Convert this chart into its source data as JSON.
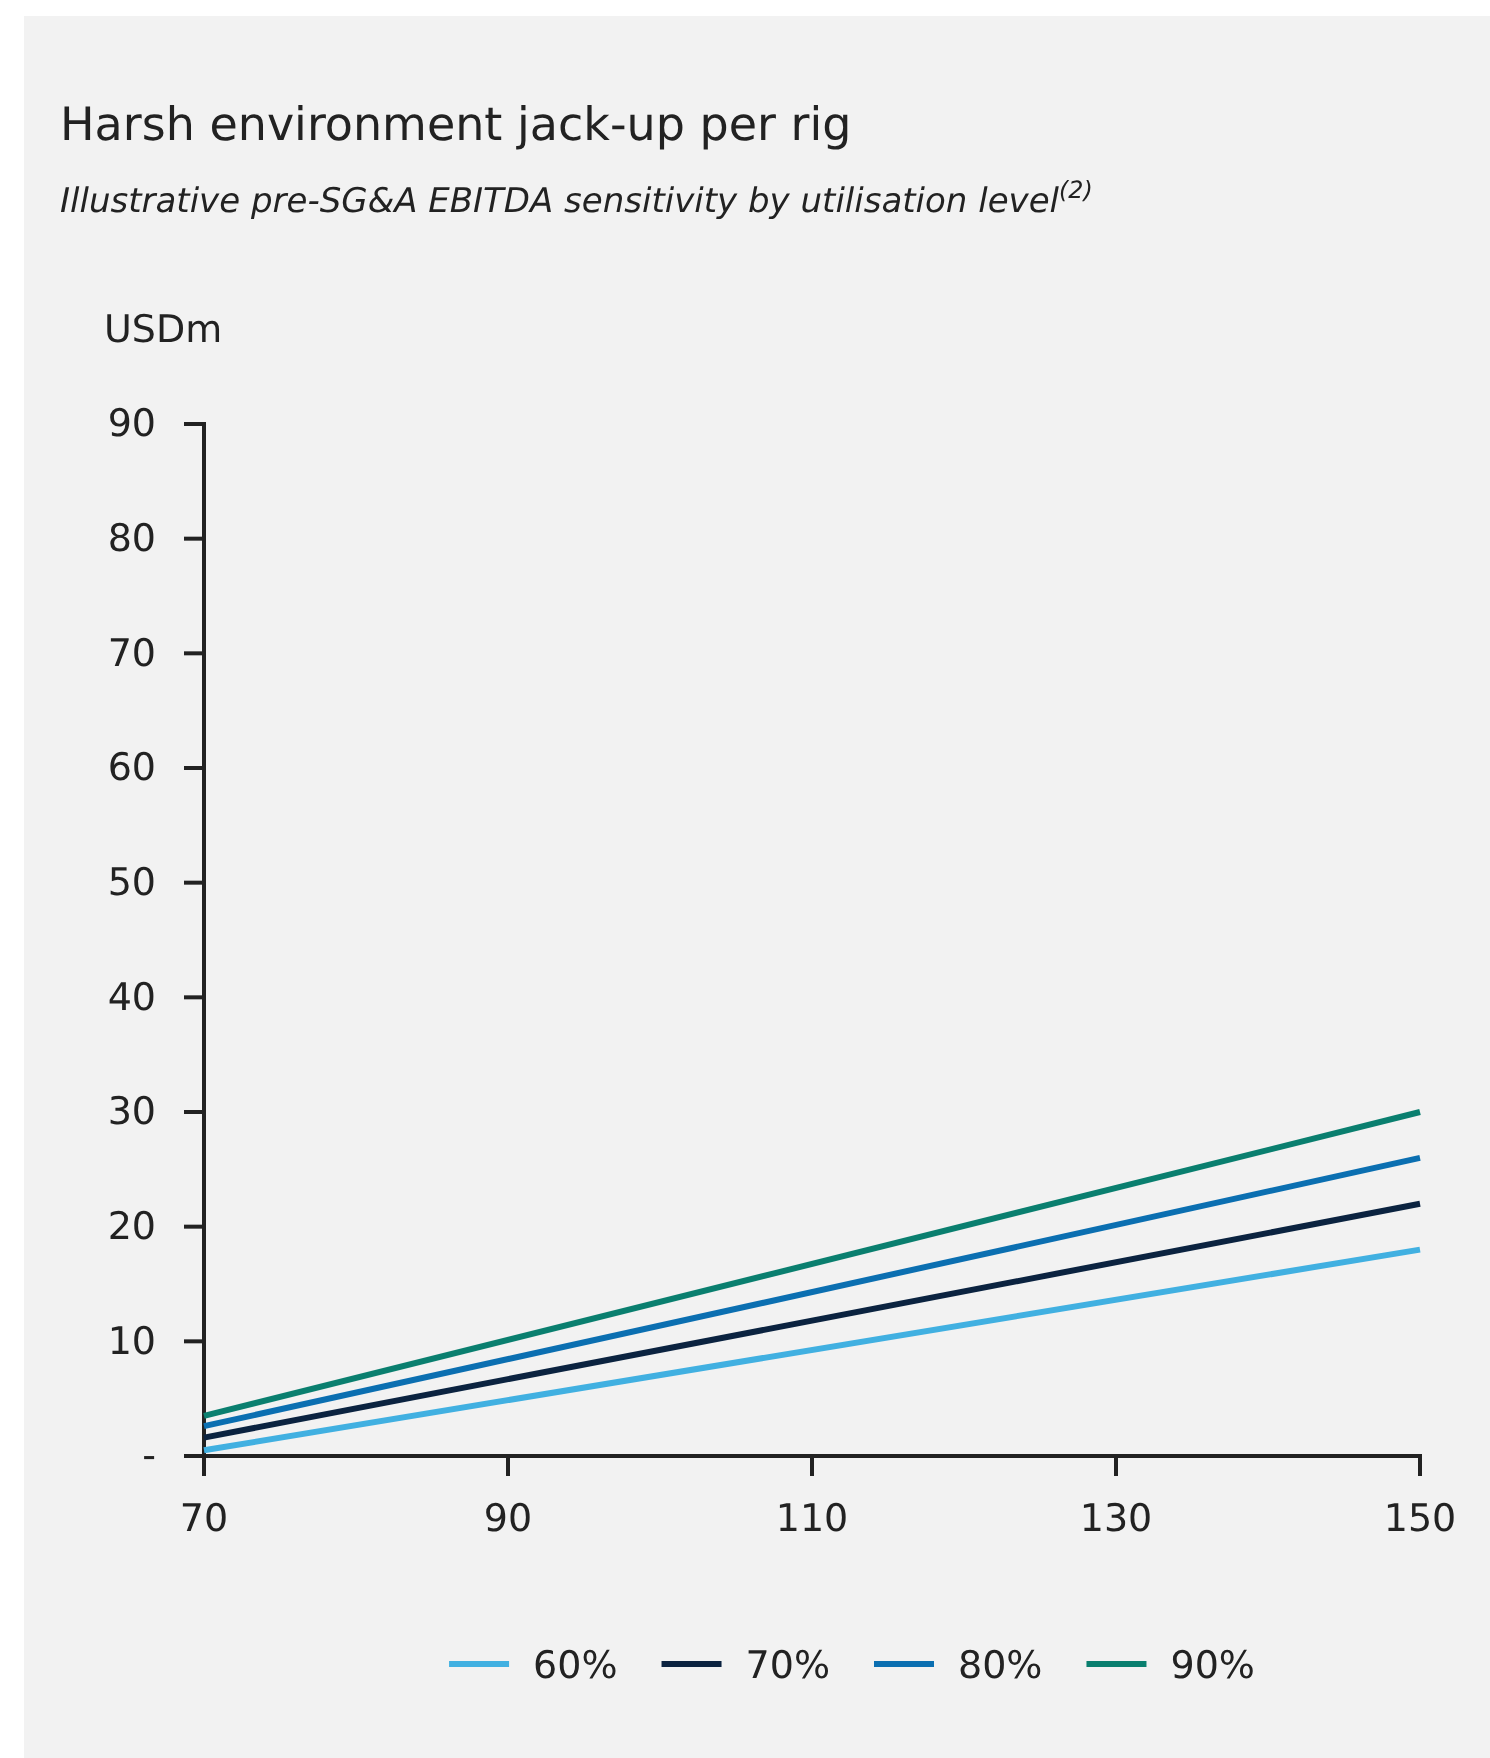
{
  "chart_data": {
    "type": "line",
    "title": "Harsh environment jack-up per rig",
    "subtitle": "Illustrative pre-SG&A EBITDA sensitivity by utilisation level$^{(2)}$",
    "ylabel": "USDm",
    "x": [
      70,
      150
    ],
    "xlim": [
      70,
      150
    ],
    "xticks": [
      70,
      90,
      110,
      130,
      150
    ],
    "ylim": [
      0,
      90
    ],
    "yticks": [
      {
        "value": 0,
        "label": "-"
      },
      10,
      20,
      30,
      40,
      50,
      60,
      70,
      80,
      90
    ],
    "series": [
      {
        "name": "60%",
        "color": "#41b0e1",
        "values": [
          0.5,
          18
        ]
      },
      {
        "name": "70%",
        "color": "#0b2340",
        "values": [
          1.6,
          22
        ]
      },
      {
        "name": "80%",
        "color": "#0b6fb1",
        "values": [
          2.6,
          26
        ]
      },
      {
        "name": "90%",
        "color": "#0a7f6f",
        "values": [
          3.5,
          30
        ]
      }
    ],
    "legend": "bottom",
    "grid": false,
    "marker": "none",
    "line_style": "solid"
  }
}
